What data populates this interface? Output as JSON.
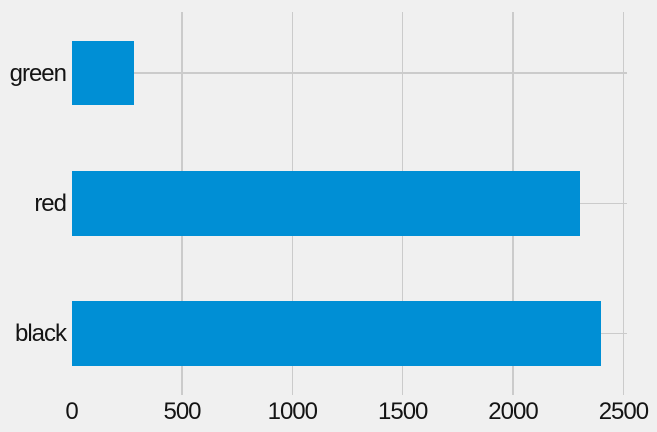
{
  "chart_data": {
    "type": "bar",
    "orientation": "horizontal",
    "title": "",
    "xlabel": "",
    "ylabel": "",
    "categories": [
      "green",
      "red",
      "black"
    ],
    "values": [
      285,
      2305,
      2400
    ],
    "x_ticks": [
      0,
      500,
      1000,
      1500,
      2000,
      2500
    ],
    "x_tick_labels": [
      "0",
      "500",
      "1000",
      "1500",
      "2000",
      "2500"
    ],
    "xlim": [
      0,
      2515
    ],
    "grid": true,
    "legend": false,
    "colors": {
      "bar": "#008fd5",
      "background": "#f0f0f0",
      "gridline": "#cbcbcb",
      "text": "#141414"
    }
  }
}
